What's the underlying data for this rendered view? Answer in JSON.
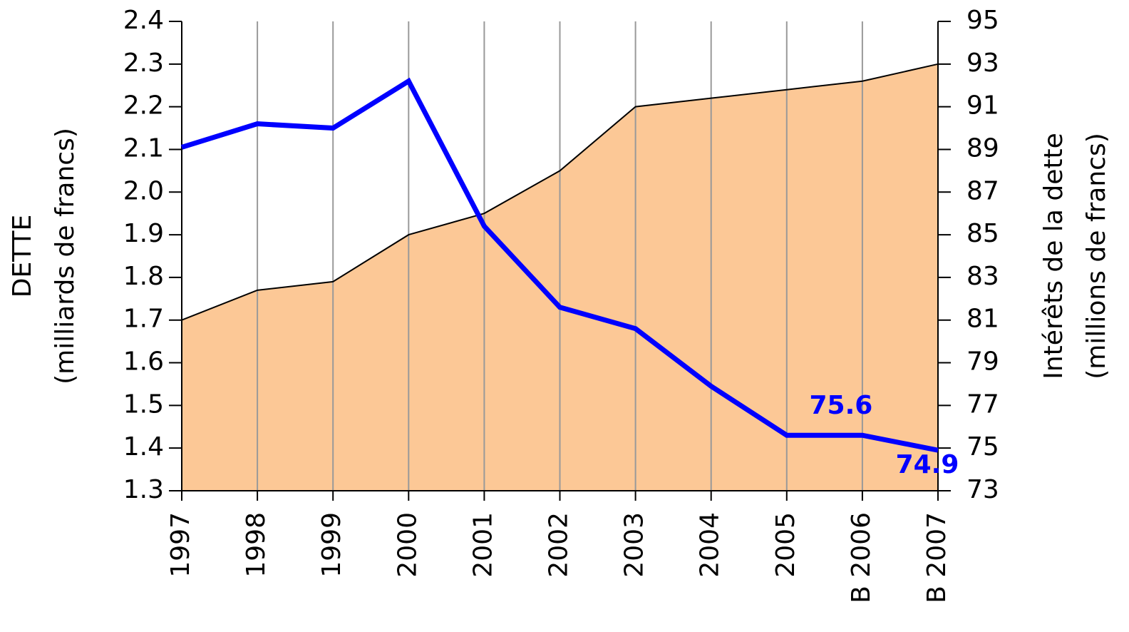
{
  "chart_data": {
    "type": "area-line",
    "y_label": [
      "DETTE",
      "(milliards de francs)"
    ],
    "y2_label": [
      "Intérêts de la dette",
      "(millions de francs)"
    ],
    "categories": [
      "1997",
      "1998",
      "1999",
      "2000",
      "2001",
      "2002",
      "2003",
      "2004",
      "2005",
      "B 2006",
      "B 2007"
    ],
    "series": [
      {
        "type": "area",
        "color": "#fcc896",
        "values": [
          1.7,
          1.77,
          1.79,
          1.9,
          1.95,
          2.05,
          2.2,
          2.22,
          2.24,
          2.26,
          2.3
        ]
      },
      {
        "type": "line",
        "axis": "y2",
        "color": "#0000ff",
        "values": [
          89.1,
          90.2,
          90.0,
          92.2,
          85.4,
          81.6,
          80.6,
          77.9,
          75.6,
          75.6,
          74.9
        ],
        "value_labels": [
          null,
          null,
          null,
          null,
          null,
          null,
          null,
          null,
          null,
          "75.6",
          "74.9"
        ]
      }
    ],
    "ylim": [
      1.3,
      2.4
    ],
    "yticks": [
      1.3,
      1.4,
      1.5,
      1.6,
      1.7,
      1.8,
      1.9,
      {
        "value": 2,
        "label": "2.0"
      },
      2.1,
      2.2,
      2.3,
      2.4
    ],
    "y2lim": [
      73,
      95
    ],
    "y2ticks": [
      73,
      75,
      77,
      79,
      81,
      83,
      85,
      87,
      89,
      91,
      93,
      95
    ],
    "grid": "vertical"
  }
}
